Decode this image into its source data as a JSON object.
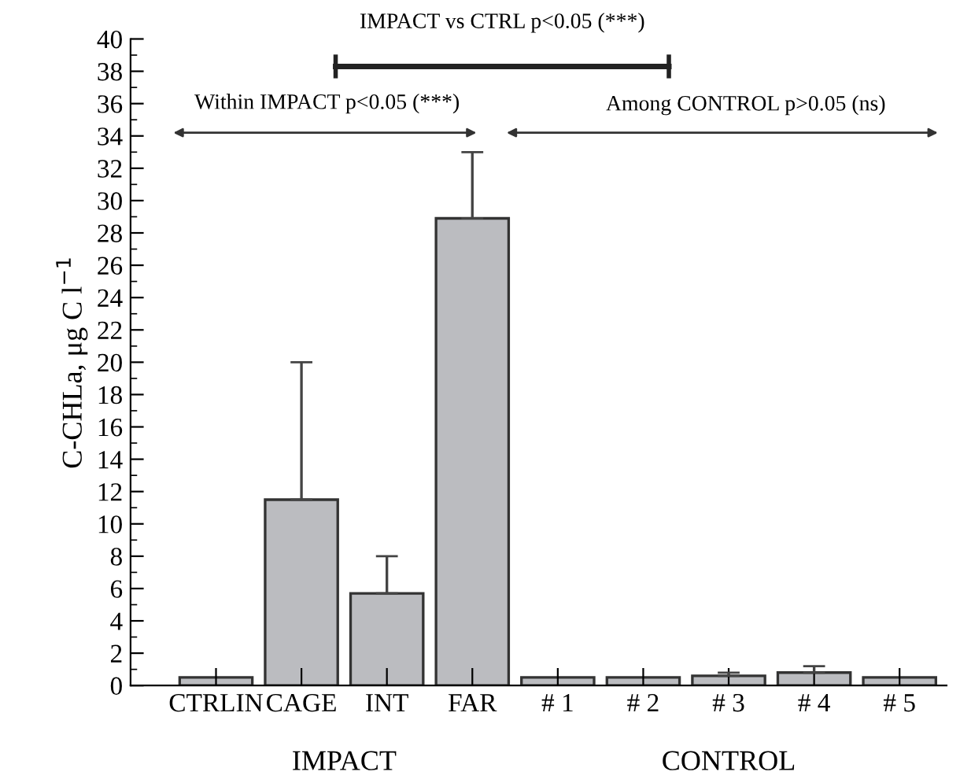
{
  "chart_data": {
    "type": "bar",
    "ylabel": "C-CHLa, μg C l$^{−1}$",
    "categories": [
      "CTRLIN",
      "CAGE",
      "INT",
      "FAR",
      "# 1",
      "# 2",
      "# 3",
      "# 4",
      "# 5"
    ],
    "values": [
      0.5,
      11.5,
      5.7,
      28.9,
      0.5,
      0.5,
      0.6,
      0.8,
      0.5
    ],
    "errors": [
      null,
      8.5,
      2.3,
      4.1,
      null,
      null,
      0.2,
      0.4,
      null
    ],
    "color": "#bbbcc0",
    "ylim": [
      0,
      40
    ],
    "yticks": [
      0,
      2,
      4,
      6,
      8,
      10,
      12,
      14,
      16,
      18,
      20,
      22,
      24,
      26,
      28,
      30,
      32,
      34,
      36,
      38,
      40
    ],
    "annotations": [
      "IMPACT vs CTRL p<0.05 (***)",
      "Within IMPACT p<0.05 (***)",
      "Among CONTROL p>0.05 (ns)",
      "IMPACT",
      "CONTROL"
    ]
  }
}
